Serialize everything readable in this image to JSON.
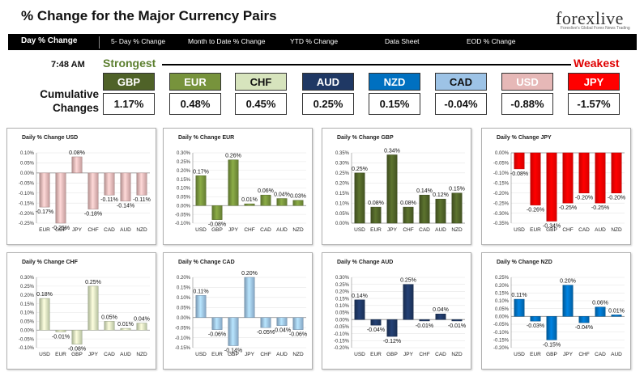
{
  "header": {
    "title": "% Change for the Major Currency Pairs",
    "logo": "forexlive",
    "logo_tagline": "Forexlive's Global Forex News Trading"
  },
  "nav": {
    "items": [
      "Day % Change",
      "5- Day % Change",
      "Month to Date % Change",
      "YTD % Change",
      "Data Sheet",
      "EOD % Change"
    ]
  },
  "summary": {
    "time": "7:48 AM",
    "strongest_label": "Strongest",
    "weakest_label": "Weakest",
    "cumulative_label_1": "Cumulative",
    "cumulative_label_2": "Changes",
    "currencies": [
      {
        "code": "GBP",
        "value": "1.17%",
        "bg": "#4f6228",
        "fg": "#ffffff"
      },
      {
        "code": "EUR",
        "value": "0.48%",
        "bg": "#77933c",
        "fg": "#ffffff"
      },
      {
        "code": "CHF",
        "value": "0.45%",
        "bg": "#d7e4bd",
        "fg": "#111111"
      },
      {
        "code": "AUD",
        "value": "0.25%",
        "bg": "#1f3864",
        "fg": "#ffffff"
      },
      {
        "code": "NZD",
        "value": "0.15%",
        "bg": "#0070c0",
        "fg": "#ffffff"
      },
      {
        "code": "CAD",
        "value": "-0.04%",
        "bg": "#9dc3e6",
        "fg": "#111111"
      },
      {
        "code": "USD",
        "value": "-0.88%",
        "bg": "#e6b8b7",
        "fg": "#ffffff"
      },
      {
        "code": "JPY",
        "value": "-1.57%",
        "bg": "#ff0000",
        "fg": "#ffffff"
      }
    ]
  },
  "chart_data": [
    {
      "type": "bar",
      "title": "Daily % Change USD",
      "categories": [
        "EUR",
        "GBP",
        "JPY",
        "CHF",
        "CAD",
        "AUD",
        "NZD"
      ],
      "values": [
        -0.17,
        -0.25,
        0.08,
        -0.18,
        -0.11,
        -0.14,
        -0.11
      ],
      "labels": [
        "-0.17%",
        "-0.25%",
        "0.08%",
        "-0.18%",
        "-0.11%",
        "-0.14%",
        "-0.11%"
      ],
      "ylim": [
        -0.25,
        0.1
      ],
      "yticks": [
        "0.10%",
        "0.05%",
        "0.00%",
        "-0.05%",
        "-0.10%",
        "-0.15%",
        "-0.20%",
        "-0.25%"
      ],
      "color": "#e6b8b7"
    },
    {
      "type": "bar",
      "title": "Daily % Change EUR",
      "categories": [
        "USD",
        "GBP",
        "JPY",
        "CHF",
        "CAD",
        "AUD",
        "NZD"
      ],
      "values": [
        0.17,
        -0.08,
        0.26,
        0.01,
        0.06,
        0.04,
        0.03
      ],
      "labels": [
        "0.17%",
        "-0.08%",
        "0.26%",
        "0.01%",
        "0.06%",
        "0.04%",
        "0.03%"
      ],
      "ylim": [
        -0.1,
        0.3
      ],
      "yticks": [
        "0.30%",
        "0.25%",
        "0.20%",
        "0.15%",
        "0.10%",
        "0.05%",
        "0.00%",
        "-0.05%",
        "-0.10%"
      ],
      "color": "#77933c"
    },
    {
      "type": "bar",
      "title": "Daily % Change GBP",
      "categories": [
        "USD",
        "EUR",
        "JPY",
        "CHF",
        "CAD",
        "AUD",
        "NZD"
      ],
      "values": [
        0.25,
        0.08,
        0.34,
        0.08,
        0.14,
        0.12,
        0.15
      ],
      "labels": [
        "0.25%",
        "0.08%",
        "0.34%",
        "0.08%",
        "0.14%",
        "0.12%",
        "0.15%"
      ],
      "ylim": [
        0,
        0.35
      ],
      "yticks": [
        "0.35%",
        "0.30%",
        "0.25%",
        "0.20%",
        "0.15%",
        "0.10%",
        "0.05%",
        "0.00%"
      ],
      "color": "#4f6228"
    },
    {
      "type": "bar",
      "title": "Daily % Change JPY",
      "categories": [
        "USD",
        "EUR",
        "GBP",
        "CHF",
        "CAD",
        "AUD",
        "NZD"
      ],
      "values": [
        -0.08,
        -0.26,
        -0.34,
        -0.25,
        -0.2,
        -0.25,
        -0.2
      ],
      "labels": [
        "-0.08%",
        "-0.26%",
        "-0.34%",
        "-0.25%",
        "-0.20%",
        "-0.25%",
        "-0.20%"
      ],
      "ylim": [
        -0.35,
        0
      ],
      "yticks": [
        "0.00%",
        "-0.05%",
        "-0.10%",
        "-0.15%",
        "-0.20%",
        "-0.25%",
        "-0.30%",
        "-0.35%"
      ],
      "color": "#ff0000"
    },
    {
      "type": "bar",
      "title": "Daily % Change CHF",
      "categories": [
        "USD",
        "EUR",
        "GBP",
        "JPY",
        "CAD",
        "AUD",
        "NZD"
      ],
      "values": [
        0.18,
        -0.01,
        -0.08,
        0.25,
        0.05,
        0.01,
        0.04
      ],
      "labels": [
        "0.18%",
        "-0.01%",
        "-0.08%",
        "0.25%",
        "0.05%",
        "0.01%",
        "0.04%"
      ],
      "ylim": [
        -0.1,
        0.3
      ],
      "yticks": [
        "0.30%",
        "0.25%",
        "0.20%",
        "0.15%",
        "0.10%",
        "0.05%",
        "0.00%",
        "-0.05%",
        "-0.10%"
      ],
      "color": "#d7e4bd"
    },
    {
      "type": "bar",
      "title": "Daily % Change CAD",
      "categories": [
        "USD",
        "EUR",
        "GBP",
        "JPY",
        "CHF",
        "AUD",
        "NZD"
      ],
      "values": [
        0.11,
        -0.06,
        -0.14,
        0.2,
        -0.05,
        -0.04,
        -0.06
      ],
      "labels": [
        "0.11%",
        "-0.06%",
        "-0.14%",
        "0.20%",
        "-0.05%",
        "-0.04%",
        "-0.06%"
      ],
      "ylim": [
        -0.15,
        0.2
      ],
      "yticks": [
        "0.20%",
        "0.15%",
        "0.10%",
        "0.05%",
        "0.00%",
        "-0.05%",
        "-0.10%",
        "-0.15%"
      ],
      "color": "#9dc3e6"
    },
    {
      "type": "bar",
      "title": "Daily % Change AUD",
      "categories": [
        "USD",
        "EUR",
        "GBP",
        "JPY",
        "CHF",
        "CAD",
        "NZD"
      ],
      "values": [
        0.14,
        -0.04,
        -0.12,
        0.25,
        -0.01,
        0.04,
        -0.01
      ],
      "labels": [
        "0.14%",
        "-0.04%",
        "-0.12%",
        "0.25%",
        "-0.01%",
        "0.04%",
        "-0.01%"
      ],
      "ylim": [
        -0.2,
        0.3
      ],
      "yticks": [
        "0.30%",
        "0.25%",
        "0.20%",
        "0.15%",
        "0.10%",
        "0.05%",
        "0.00%",
        "-0.05%",
        "-0.10%",
        "-0.15%",
        "-0.20%"
      ],
      "color": "#1f3864"
    },
    {
      "type": "bar",
      "title": "Daily % Change NZD",
      "categories": [
        "USD",
        "EUR",
        "GBP",
        "JPY",
        "CHF",
        "CAD",
        "AUD"
      ],
      "values": [
        0.11,
        -0.03,
        -0.15,
        0.2,
        -0.04,
        0.06,
        0.01
      ],
      "labels": [
        "0.11%",
        "-0.03%",
        "-0.15%",
        "0.20%",
        "-0.04%",
        "0.06%",
        "0.01%"
      ],
      "ylim": [
        -0.2,
        0.25
      ],
      "yticks": [
        "0.25%",
        "0.20%",
        "0.15%",
        "0.10%",
        "0.05%",
        "0.00%",
        "-0.05%",
        "-0.10%",
        "-0.15%",
        "-0.20%"
      ],
      "color": "#0070c0"
    }
  ]
}
